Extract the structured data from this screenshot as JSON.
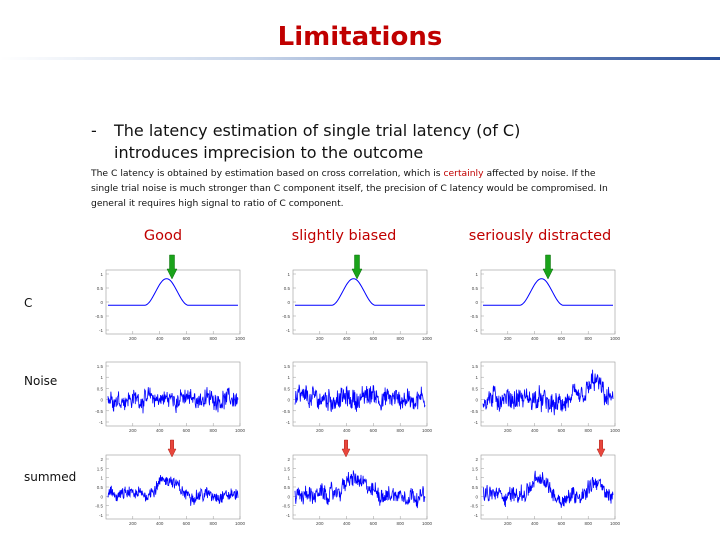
{
  "slide": {
    "title": "Limitations",
    "bullet_dash": "-",
    "bullet_text": "The latency estimation of single trial latency (of C) introduces imprecision to the outcome",
    "para_before": "The C latency is obtained by estimation based on cross correlation, which is ",
    "para_highlight": "certainly",
    "para_after": " affected by noise. If the single trial noise is much stronger than C component itself, the precision of C latency would be compromised. In general it requires high signal to ratio of C component."
  },
  "columns": [
    "Good",
    "slightly biased",
    "seriously distracted"
  ],
  "rows": [
    "C",
    "Noise",
    "summed"
  ],
  "colors": {
    "title": "#c00000",
    "signal": "#0000ff",
    "marker_good": "#1aa31a",
    "marker_bad": "#e8463c"
  },
  "chart_data": {
    "type": "line",
    "x_ticks": [
      "200",
      "400",
      "600",
      "800",
      "1000"
    ],
    "c_row_y_ticks": [
      "1",
      "0.5",
      "0",
      "-0.5",
      "-1"
    ],
    "noise_row_y_ticks": [
      "1.5",
      "1",
      "0.5",
      "0",
      "-0.5",
      "-1"
    ],
    "summed_row_y_ticks": [
      "2",
      "1.5",
      "1",
      "0.5",
      "0",
      "-0.5",
      "-1"
    ],
    "markers": [
      {
        "row": "C",
        "column": "Good",
        "color": "green"
      },
      {
        "row": "C",
        "column": "slightly biased",
        "color": "green"
      },
      {
        "row": "C",
        "column": "seriously distracted",
        "color": "green"
      },
      {
        "row": "summed",
        "column": "Good",
        "color": "red"
      },
      {
        "row": "summed",
        "column": "slightly biased",
        "color": "red"
      },
      {
        "row": "summed",
        "column": "seriously distracted",
        "color": "red"
      }
    ]
  }
}
